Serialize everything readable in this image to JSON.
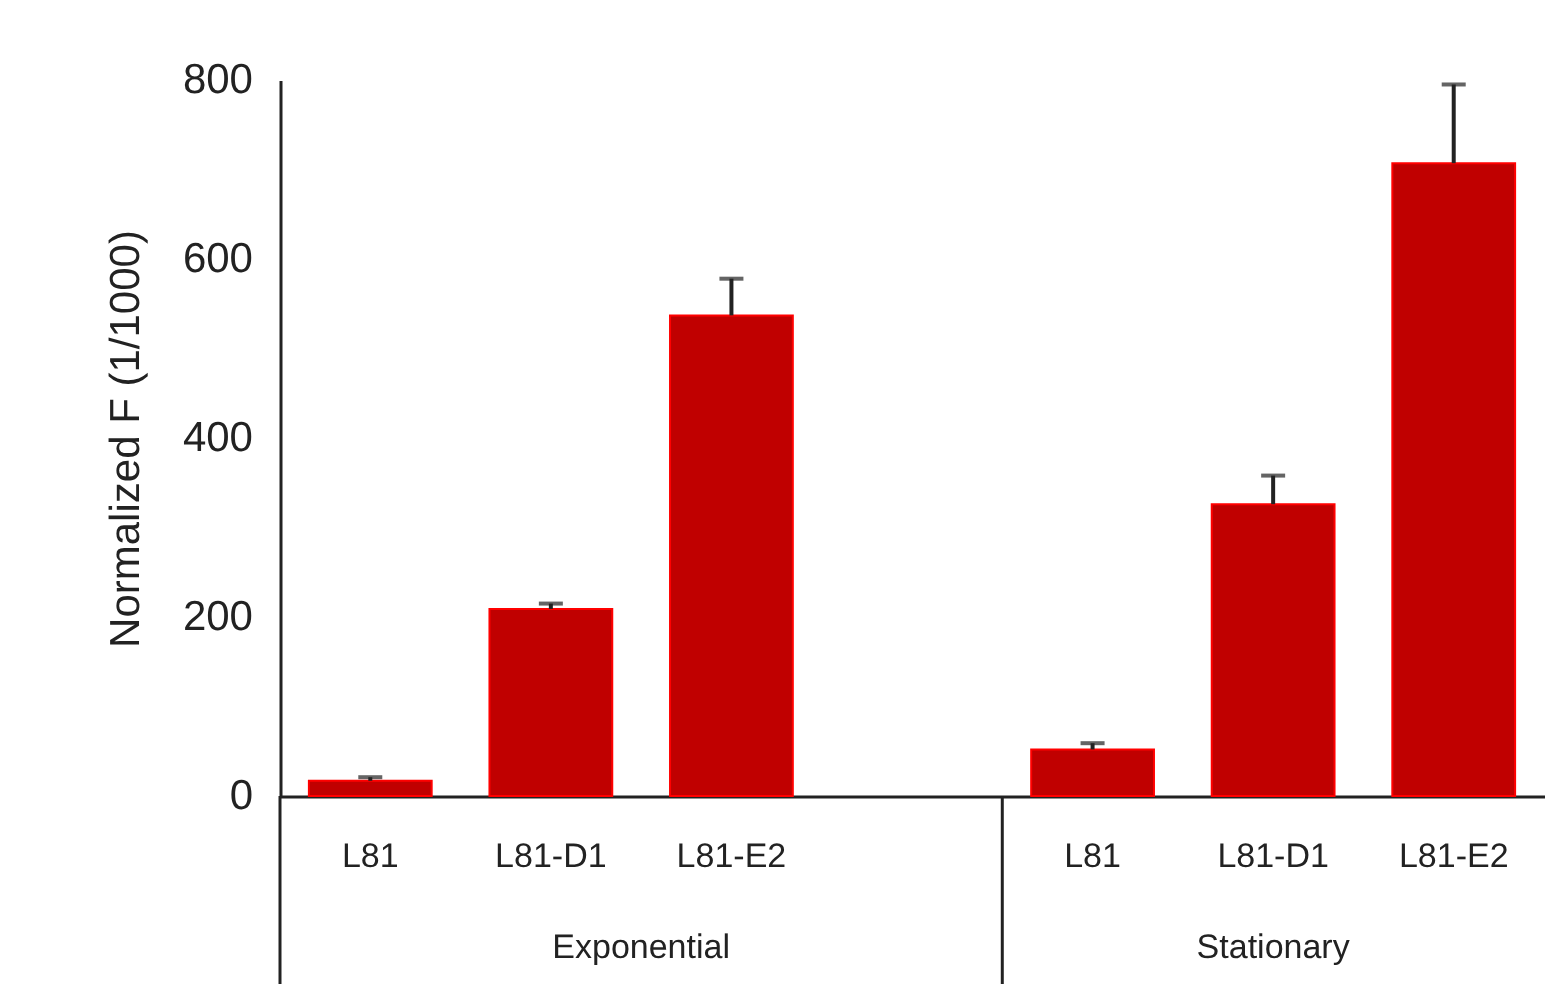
{
  "chart_data": {
    "type": "bar",
    "ylabel": "Normalized F (1/1000)",
    "categories": [
      "L81",
      "L81-D1",
      "L81-E2",
      null,
      "L81",
      "L81-D1",
      "L81-E2"
    ],
    "values": [
      17,
      209,
      537,
      null,
      52,
      326,
      707
    ],
    "errors": [
      [
        17,
        21
      ],
      [
        209,
        215
      ],
      [
        537,
        578
      ],
      null,
      [
        52,
        59
      ],
      [
        326,
        358
      ],
      [
        707,
        795
      ]
    ],
    "color": "#c00000",
    "ylim": [
      0,
      800
    ],
    "yticks": [
      0,
      200,
      400,
      600,
      800
    ],
    "annotations": [
      "Exponential",
      "Stationary"
    ]
  }
}
